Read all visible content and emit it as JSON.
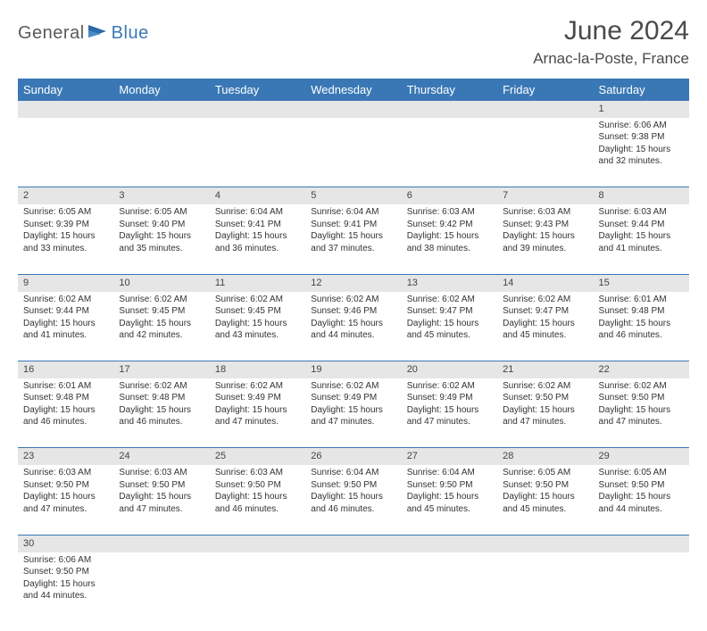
{
  "header": {
    "logo_part1": "General",
    "logo_part2": "Blue",
    "month_title": "June 2024",
    "location": "Arnac-la-Poste, France"
  },
  "colors": {
    "header_bar": "#3a78b5",
    "header_text": "#ffffff",
    "daynum_bg": "#e6e6e6",
    "cell_border": "#3a78b5",
    "logo_gray": "#5a5a5a",
    "logo_blue": "#3a78b5",
    "text": "#333333",
    "title_text": "#4a4a4a",
    "background": "#ffffff"
  },
  "typography": {
    "body_font": "Arial",
    "month_title_size_pt": 22,
    "location_size_pt": 13,
    "weekday_size_pt": 10,
    "daynum_size_pt": 8,
    "cell_size_pt": 7.5
  },
  "weekdays": [
    "Sunday",
    "Monday",
    "Tuesday",
    "Wednesday",
    "Thursday",
    "Friday",
    "Saturday"
  ],
  "weeks": [
    [
      null,
      null,
      null,
      null,
      null,
      null,
      {
        "n": "1",
        "sr": "Sunrise: 6:06 AM",
        "ss": "Sunset: 9:38 PM",
        "d1": "Daylight: 15 hours",
        "d2": "and 32 minutes."
      }
    ],
    [
      {
        "n": "2",
        "sr": "Sunrise: 6:05 AM",
        "ss": "Sunset: 9:39 PM",
        "d1": "Daylight: 15 hours",
        "d2": "and 33 minutes."
      },
      {
        "n": "3",
        "sr": "Sunrise: 6:05 AM",
        "ss": "Sunset: 9:40 PM",
        "d1": "Daylight: 15 hours",
        "d2": "and 35 minutes."
      },
      {
        "n": "4",
        "sr": "Sunrise: 6:04 AM",
        "ss": "Sunset: 9:41 PM",
        "d1": "Daylight: 15 hours",
        "d2": "and 36 minutes."
      },
      {
        "n": "5",
        "sr": "Sunrise: 6:04 AM",
        "ss": "Sunset: 9:41 PM",
        "d1": "Daylight: 15 hours",
        "d2": "and 37 minutes."
      },
      {
        "n": "6",
        "sr": "Sunrise: 6:03 AM",
        "ss": "Sunset: 9:42 PM",
        "d1": "Daylight: 15 hours",
        "d2": "and 38 minutes."
      },
      {
        "n": "7",
        "sr": "Sunrise: 6:03 AM",
        "ss": "Sunset: 9:43 PM",
        "d1": "Daylight: 15 hours",
        "d2": "and 39 minutes."
      },
      {
        "n": "8",
        "sr": "Sunrise: 6:03 AM",
        "ss": "Sunset: 9:44 PM",
        "d1": "Daylight: 15 hours",
        "d2": "and 41 minutes."
      }
    ],
    [
      {
        "n": "9",
        "sr": "Sunrise: 6:02 AM",
        "ss": "Sunset: 9:44 PM",
        "d1": "Daylight: 15 hours",
        "d2": "and 41 minutes."
      },
      {
        "n": "10",
        "sr": "Sunrise: 6:02 AM",
        "ss": "Sunset: 9:45 PM",
        "d1": "Daylight: 15 hours",
        "d2": "and 42 minutes."
      },
      {
        "n": "11",
        "sr": "Sunrise: 6:02 AM",
        "ss": "Sunset: 9:45 PM",
        "d1": "Daylight: 15 hours",
        "d2": "and 43 minutes."
      },
      {
        "n": "12",
        "sr": "Sunrise: 6:02 AM",
        "ss": "Sunset: 9:46 PM",
        "d1": "Daylight: 15 hours",
        "d2": "and 44 minutes."
      },
      {
        "n": "13",
        "sr": "Sunrise: 6:02 AM",
        "ss": "Sunset: 9:47 PM",
        "d1": "Daylight: 15 hours",
        "d2": "and 45 minutes."
      },
      {
        "n": "14",
        "sr": "Sunrise: 6:02 AM",
        "ss": "Sunset: 9:47 PM",
        "d1": "Daylight: 15 hours",
        "d2": "and 45 minutes."
      },
      {
        "n": "15",
        "sr": "Sunrise: 6:01 AM",
        "ss": "Sunset: 9:48 PM",
        "d1": "Daylight: 15 hours",
        "d2": "and 46 minutes."
      }
    ],
    [
      {
        "n": "16",
        "sr": "Sunrise: 6:01 AM",
        "ss": "Sunset: 9:48 PM",
        "d1": "Daylight: 15 hours",
        "d2": "and 46 minutes."
      },
      {
        "n": "17",
        "sr": "Sunrise: 6:02 AM",
        "ss": "Sunset: 9:48 PM",
        "d1": "Daylight: 15 hours",
        "d2": "and 46 minutes."
      },
      {
        "n": "18",
        "sr": "Sunrise: 6:02 AM",
        "ss": "Sunset: 9:49 PM",
        "d1": "Daylight: 15 hours",
        "d2": "and 47 minutes."
      },
      {
        "n": "19",
        "sr": "Sunrise: 6:02 AM",
        "ss": "Sunset: 9:49 PM",
        "d1": "Daylight: 15 hours",
        "d2": "and 47 minutes."
      },
      {
        "n": "20",
        "sr": "Sunrise: 6:02 AM",
        "ss": "Sunset: 9:49 PM",
        "d1": "Daylight: 15 hours",
        "d2": "and 47 minutes."
      },
      {
        "n": "21",
        "sr": "Sunrise: 6:02 AM",
        "ss": "Sunset: 9:50 PM",
        "d1": "Daylight: 15 hours",
        "d2": "and 47 minutes."
      },
      {
        "n": "22",
        "sr": "Sunrise: 6:02 AM",
        "ss": "Sunset: 9:50 PM",
        "d1": "Daylight: 15 hours",
        "d2": "and 47 minutes."
      }
    ],
    [
      {
        "n": "23",
        "sr": "Sunrise: 6:03 AM",
        "ss": "Sunset: 9:50 PM",
        "d1": "Daylight: 15 hours",
        "d2": "and 47 minutes."
      },
      {
        "n": "24",
        "sr": "Sunrise: 6:03 AM",
        "ss": "Sunset: 9:50 PM",
        "d1": "Daylight: 15 hours",
        "d2": "and 47 minutes."
      },
      {
        "n": "25",
        "sr": "Sunrise: 6:03 AM",
        "ss": "Sunset: 9:50 PM",
        "d1": "Daylight: 15 hours",
        "d2": "and 46 minutes."
      },
      {
        "n": "26",
        "sr": "Sunrise: 6:04 AM",
        "ss": "Sunset: 9:50 PM",
        "d1": "Daylight: 15 hours",
        "d2": "and 46 minutes."
      },
      {
        "n": "27",
        "sr": "Sunrise: 6:04 AM",
        "ss": "Sunset: 9:50 PM",
        "d1": "Daylight: 15 hours",
        "d2": "and 45 minutes."
      },
      {
        "n": "28",
        "sr": "Sunrise: 6:05 AM",
        "ss": "Sunset: 9:50 PM",
        "d1": "Daylight: 15 hours",
        "d2": "and 45 minutes."
      },
      {
        "n": "29",
        "sr": "Sunrise: 6:05 AM",
        "ss": "Sunset: 9:50 PM",
        "d1": "Daylight: 15 hours",
        "d2": "and 44 minutes."
      }
    ],
    [
      {
        "n": "30",
        "sr": "Sunrise: 6:06 AM",
        "ss": "Sunset: 9:50 PM",
        "d1": "Daylight: 15 hours",
        "d2": "and 44 minutes."
      },
      null,
      null,
      null,
      null,
      null,
      null
    ]
  ]
}
